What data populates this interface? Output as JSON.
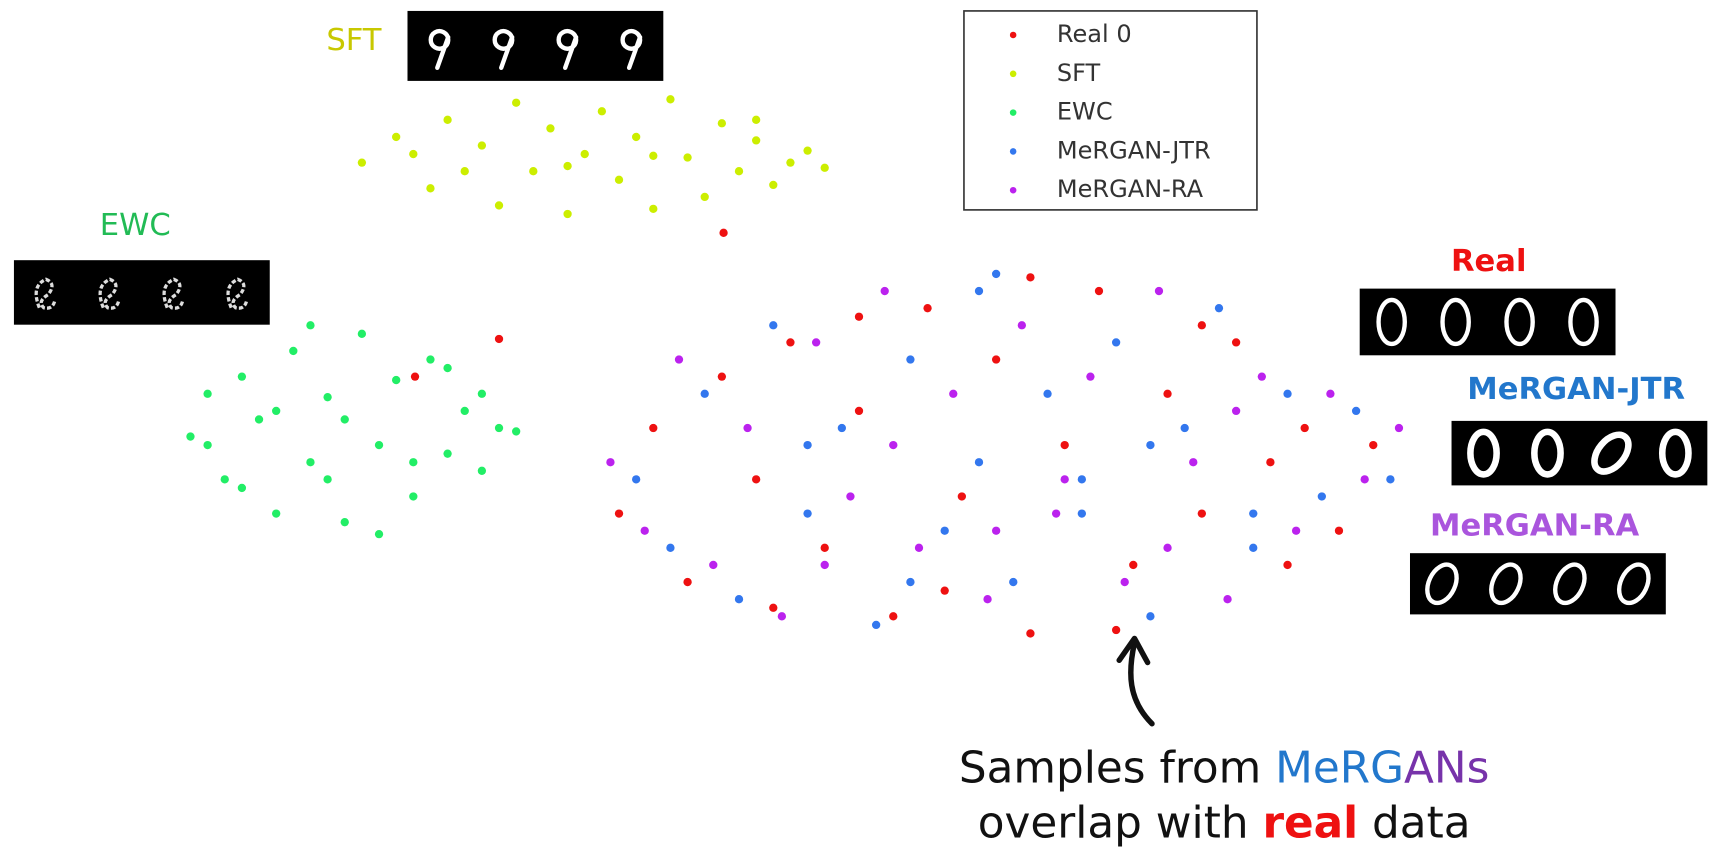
{
  "chart_data": {
    "type": "scatter",
    "xlim": [
      0,
      100
    ],
    "ylim": [
      0,
      50
    ],
    "legend": "upper center",
    "series": [
      {
        "name": "Real 0",
        "color": "#ee1111",
        "x": [
          36,
          38,
          40,
          42,
          44,
          46,
          48,
          50,
          52,
          54,
          56,
          58,
          60,
          62,
          64,
          66,
          68,
          70,
          72,
          74,
          76,
          78,
          80,
          45,
          55,
          65,
          75,
          50,
          60,
          70,
          42.1,
          29,
          24.1
        ],
        "y": [
          20,
          25,
          16,
          28,
          22,
          30,
          18,
          26,
          14,
          32,
          21,
          29,
          13,
          24,
          33,
          17,
          27,
          20,
          30,
          23,
          25,
          19,
          24,
          14.5,
          15.5,
          13.2,
          17,
          31.5,
          33.8,
          31,
          36.4,
          30.2,
          28
        ]
      },
      {
        "name": "SFT",
        "color": "#ccee00",
        "x": [
          21,
          23,
          25,
          26,
          28,
          29,
          30,
          31,
          32,
          33,
          34,
          35,
          36,
          37,
          38,
          39,
          40,
          41,
          42,
          43,
          44,
          45,
          46,
          47,
          48,
          27,
          33,
          38,
          24,
          44
        ],
        "y": [
          40.5,
          42,
          39,
          43,
          41.5,
          38,
          44,
          40,
          42.5,
          37.5,
          41,
          43.5,
          39.5,
          42,
          37.8,
          44.2,
          40.8,
          38.5,
          42.8,
          40,
          41.8,
          39.2,
          40.5,
          41.2,
          40.2,
          40,
          40.3,
          40.9,
          41,
          43
        ]
      },
      {
        "name": "EWC",
        "color": "#22ee66",
        "x": [
          11,
          12,
          13,
          14,
          15,
          16,
          17,
          18,
          19,
          20,
          21,
          22,
          23,
          24,
          25,
          26,
          27,
          28,
          29,
          30,
          14,
          18,
          22,
          26,
          16,
          20,
          24,
          28,
          12,
          19
        ],
        "y": [
          24.5,
          27,
          22,
          28,
          25.5,
          20,
          29.5,
          23,
          26.8,
          19.5,
          30.5,
          24,
          27.8,
          21,
          29,
          23.5,
          26,
          22.5,
          25,
          24.8,
          21.5,
          31,
          18.8,
          28.5,
          26,
          25.5,
          23,
          27,
          24,
          22
        ]
      },
      {
        "name": "MeRGAN-JTR",
        "color": "#3377ee",
        "x": [
          37,
          39,
          41,
          43,
          45,
          47,
          49,
          51,
          53,
          55,
          57,
          59,
          61,
          63,
          65,
          67,
          69,
          71,
          73,
          75,
          77,
          79,
          81,
          47,
          57,
          67,
          53,
          63,
          73,
          58
        ],
        "y": [
          22,
          18,
          27,
          15,
          31,
          20,
          25,
          13.5,
          29,
          19,
          33,
          16,
          27,
          22,
          30,
          14,
          25,
          32,
          18,
          27,
          21,
          26,
          22,
          24,
          23,
          24,
          16,
          20,
          20,
          34
        ]
      },
      {
        "name": "MeRGAN-RA",
        "color": "#bb22ee",
        "x": [
          35.5,
          37.5,
          39.5,
          41.5,
          43.5,
          45.5,
          47.5,
          49.5,
          51.5,
          53.5,
          55.5,
          57.5,
          59.5,
          61.5,
          63.5,
          65.5,
          67.5,
          69.5,
          71.5,
          73.5,
          75.5,
          77.5,
          79.5,
          81.5,
          52,
          62,
          72,
          48,
          58,
          68
        ],
        "y": [
          23,
          19,
          29,
          17,
          25,
          14,
          30,
          21,
          33,
          18,
          27,
          15,
          31,
          20,
          28,
          16,
          33,
          23,
          15,
          28,
          19,
          27,
          22,
          25,
          24,
          22,
          26,
          17,
          19,
          18
        ]
      }
    ],
    "annotations": [
      "SFT",
      "EWC",
      "Real",
      "MeRGAN-JTR",
      "MeRGAN-RA"
    ],
    "caption": [
      [
        "Samples from ",
        "MeRG",
        "ANs"
      ],
      [
        "overlap with ",
        "real",
        " data"
      ]
    ]
  }
}
